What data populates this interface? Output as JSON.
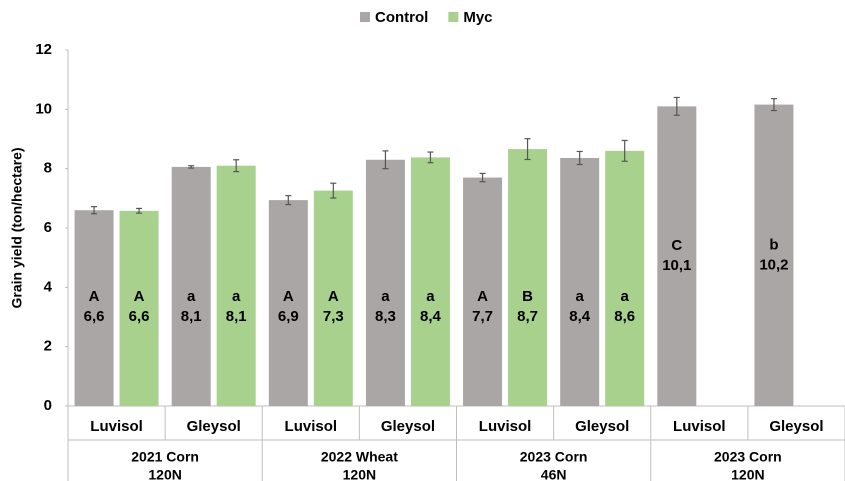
{
  "chart_data": {
    "type": "bar",
    "ylabel": "Grain yield (ton/hectare)",
    "categories": [
      "Luvisol",
      "Gleysol",
      "Luvisol",
      "Gleysol",
      "Luvisol",
      "Gleysol",
      "Luvisol",
      "Gleysol"
    ],
    "groups": [
      [
        "2021 Corn",
        "120N"
      ],
      [
        "2022 Wheat",
        "120N"
      ],
      [
        "2023 Corn",
        "46N"
      ],
      [
        "2023 Corn",
        "120N"
      ]
    ],
    "series": [
      {
        "name": "Control",
        "color": "#aaa6a6",
        "values": [
          6.6,
          8.06,
          6.94,
          8.3,
          7.7,
          8.36,
          10.1,
          10.16
        ],
        "errors": [
          0.12,
          0.04,
          0.15,
          0.3,
          0.14,
          0.22,
          0.3,
          0.2
        ],
        "value_labels": [
          "6,6",
          "8,1",
          "6,9",
          "8,3",
          "7,7",
          "8,4",
          "10,1",
          "10,2"
        ],
        "letters": [
          "A",
          "a",
          "A",
          "a",
          "A",
          "a",
          "C",
          "b"
        ]
      },
      {
        "name": "Myc",
        "color": "#a9d18e",
        "values": [
          6.58,
          8.1,
          7.26,
          8.38,
          8.66,
          8.6,
          null,
          null
        ],
        "errors": [
          0.08,
          0.2,
          0.25,
          0.18,
          0.35,
          0.35,
          null,
          null
        ],
        "value_labels": [
          "6,6",
          "8,1",
          "7,3",
          "8,4",
          "8,7",
          "8,6",
          null,
          null
        ],
        "letters": [
          "A",
          "a",
          "A",
          "a",
          "B",
          "a",
          null,
          null
        ]
      }
    ],
    "ylim": [
      0,
      12
    ],
    "yticks": [
      0,
      2,
      4,
      6,
      8,
      10,
      12
    ],
    "legend": "top"
  }
}
